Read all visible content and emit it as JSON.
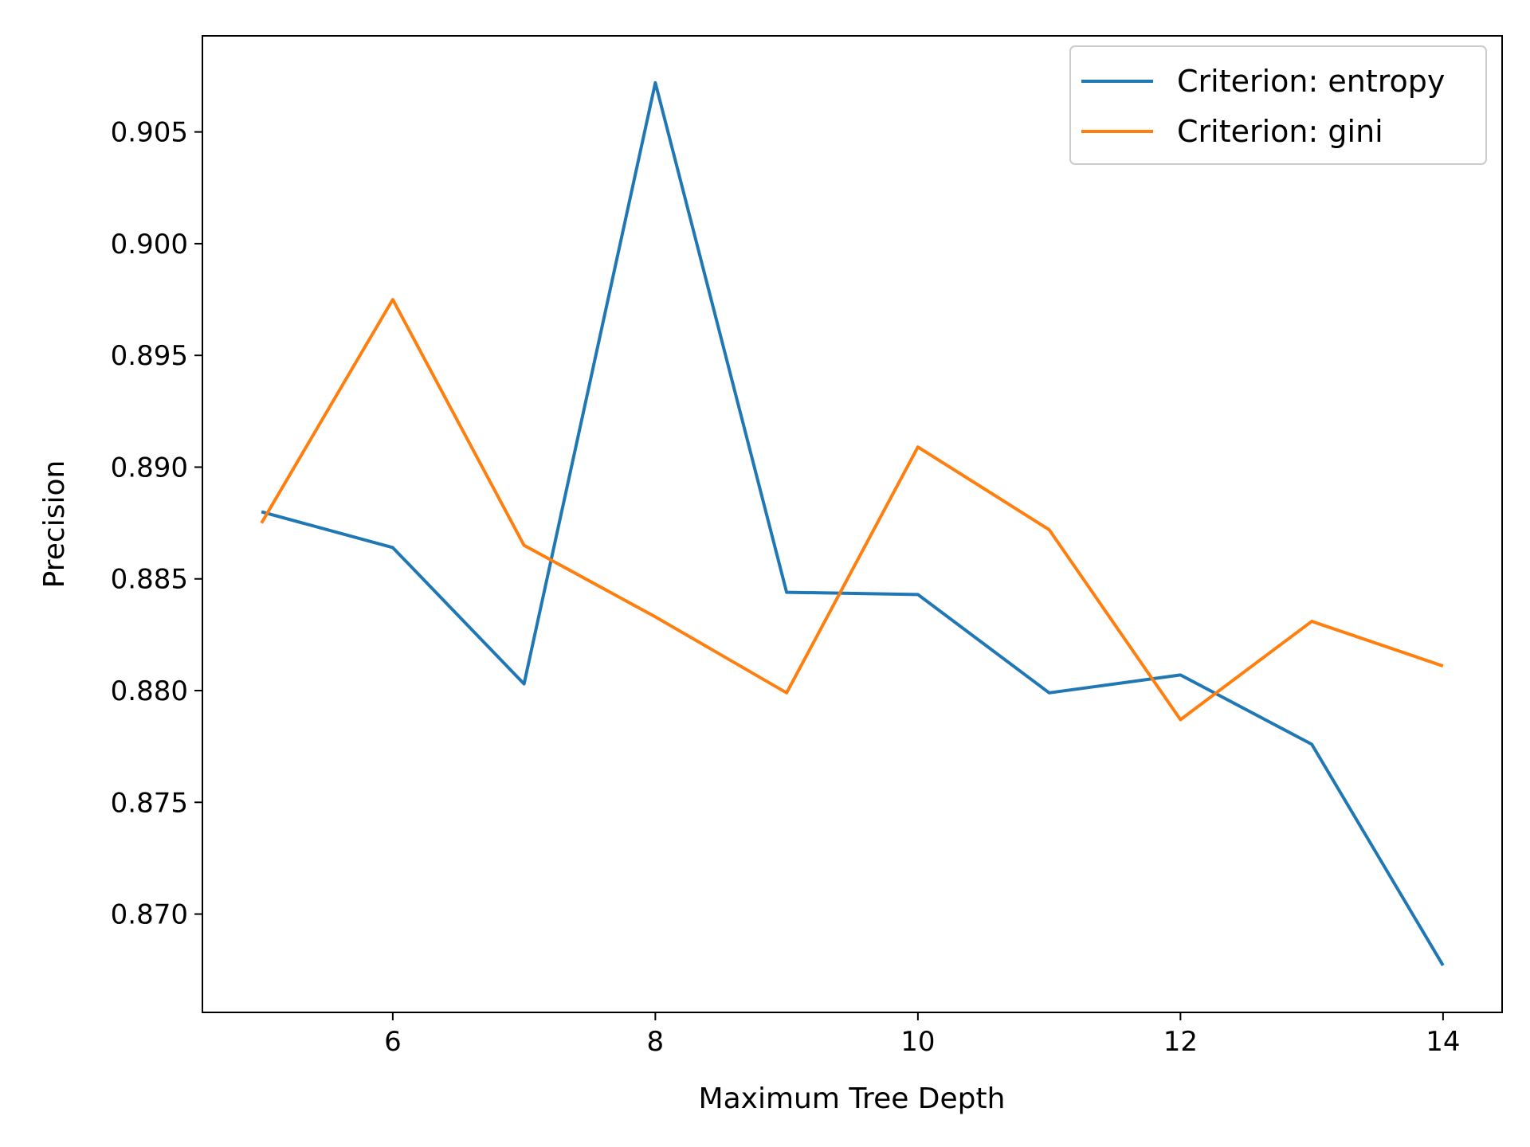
{
  "chart_data": {
    "type": "line",
    "title": "",
    "xlabel": "Maximum Tree Depth",
    "ylabel": "Precision",
    "x": [
      5,
      6,
      7,
      8,
      9,
      10,
      11,
      12,
      13,
      14
    ],
    "xlim": [
      4.55,
      14.45
    ],
    "ylim": [
      0.8656,
      0.9093
    ],
    "xticks": [
      6,
      8,
      10,
      12,
      14
    ],
    "yticks": [
      0.87,
      0.875,
      0.88,
      0.885,
      0.89,
      0.895,
      0.9,
      0.905
    ],
    "ytick_labels": [
      "0.870",
      "0.875",
      "0.880",
      "0.885",
      "0.890",
      "0.895",
      "0.900",
      "0.905"
    ],
    "grid": false,
    "legend_position": "top-right",
    "series": [
      {
        "name": "Criterion: entropy",
        "color": "#1f77b4",
        "values": [
          0.888,
          0.8864,
          0.8803,
          0.9072,
          0.8844,
          0.8843,
          0.8799,
          0.8807,
          0.8776,
          0.8677
        ]
      },
      {
        "name": "Criterion: gini",
        "color": "#ff7f0e",
        "values": [
          0.8875,
          0.8975,
          0.8865,
          0.8833,
          0.8799,
          0.8909,
          0.8872,
          0.8787,
          0.8831,
          0.8811
        ]
      }
    ]
  }
}
